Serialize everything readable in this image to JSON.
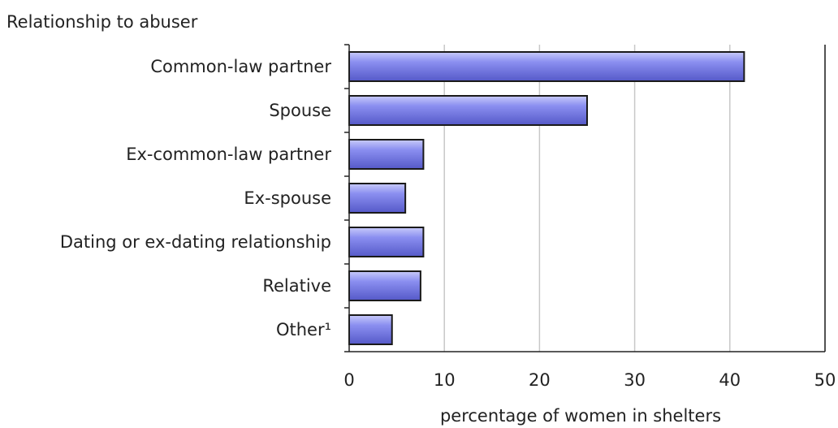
{
  "chart_data": {
    "type": "bar",
    "orientation": "horizontal",
    "ylabel": "Relationship to abuser",
    "xlabel": "percentage of women in shelters",
    "categories": [
      "Common-law partner",
      "Spouse",
      "Ex-common-law partner",
      "Ex-spouse",
      "Dating or ex-dating relationship",
      "Relative",
      "Other¹"
    ],
    "values": [
      41.5,
      25,
      7.8,
      5.9,
      7.8,
      7.5,
      4.5
    ],
    "xlim": [
      0,
      50
    ],
    "xticks": [
      "0",
      "10",
      "20",
      "30",
      "40",
      "50"
    ],
    "grid": "vertical",
    "colors": {
      "bar": "#8a8ef0",
      "bar_highlight": "#c9cbfa",
      "bar_shadow": "#5559c8",
      "border": "#1a1a1a",
      "grid": "#c8c8c8"
    }
  }
}
